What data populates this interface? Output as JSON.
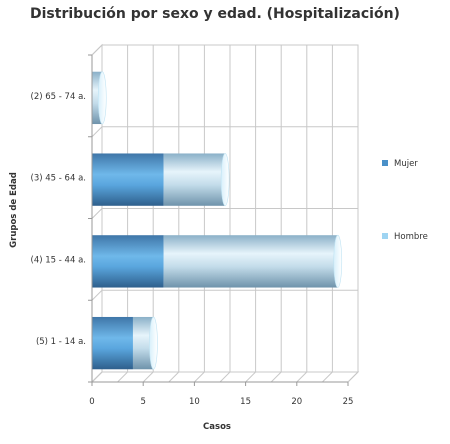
{
  "chart_data": {
    "type": "bar",
    "orientation": "horizontal",
    "style": "3d-cylinder",
    "title": "Distribución por sexo y edad. (Hospitalización)",
    "xlabel": "Casos",
    "ylabel": "Grupos de Edad",
    "categories": [
      "(2) 65 - 74 a.",
      "(3) 45 - 64 a.",
      "(4) 15 - 44 a.",
      "(5) 1 - 14 a."
    ],
    "series": [
      {
        "name": "Mujer",
        "values": [
          0,
          7,
          7,
          4
        ],
        "color": "#4a90c8"
      },
      {
        "name": "Hombre",
        "values": [
          1,
          6,
          17,
          2
        ],
        "color": "#9ed4f2"
      }
    ],
    "stacked": true,
    "xlim": [
      0,
      25
    ],
    "xticks": [
      0,
      5,
      10,
      15,
      20,
      25
    ],
    "grid": true,
    "legend_position": "right"
  }
}
